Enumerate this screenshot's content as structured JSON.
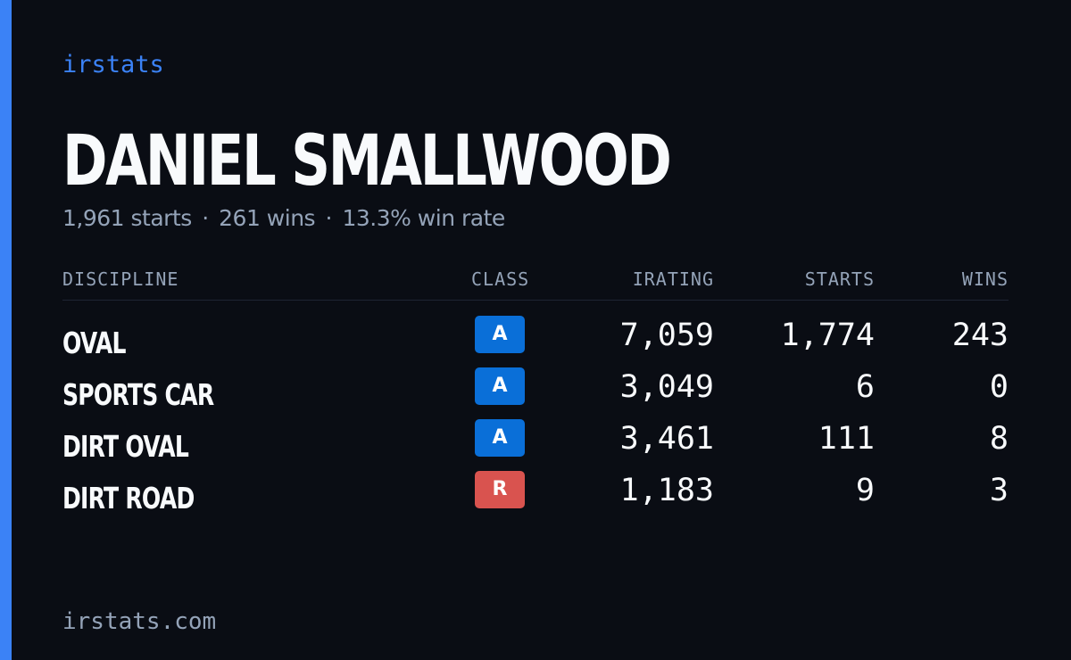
{
  "brand": "irstats",
  "driver": {
    "name": "DANIEL SMALLWOOD"
  },
  "summary": {
    "starts": "1,961 starts",
    "wins": "261 wins",
    "win_rate": "13.3% win rate",
    "separator": "·"
  },
  "table": {
    "headers": {
      "discipline": "DISCIPLINE",
      "class": "CLASS",
      "irating": "IRATING",
      "starts": "STARTS",
      "wins": "WINS"
    },
    "rows": [
      {
        "discipline": "OVAL",
        "class": "A",
        "class_color": "#0a6fd8",
        "irating": "7,059",
        "starts": "1,774",
        "wins": "243"
      },
      {
        "discipline": "SPORTS CAR",
        "class": "A",
        "class_color": "#0a6fd8",
        "irating": "3,049",
        "starts": "6",
        "wins": "0"
      },
      {
        "discipline": "DIRT OVAL",
        "class": "A",
        "class_color": "#0a6fd8",
        "irating": "3,461",
        "starts": "111",
        "wins": "8"
      },
      {
        "discipline": "DIRT ROAD",
        "class": "R",
        "class_color": "#d9534f",
        "irating": "1,183",
        "starts": "9",
        "wins": "3"
      }
    ]
  },
  "footer": {
    "url": "irstats.com"
  },
  "colors": {
    "background": "#0a0d14",
    "accent": "#3b82f6",
    "text_primary": "#f8fafc",
    "text_muted": "#94a3b8"
  }
}
